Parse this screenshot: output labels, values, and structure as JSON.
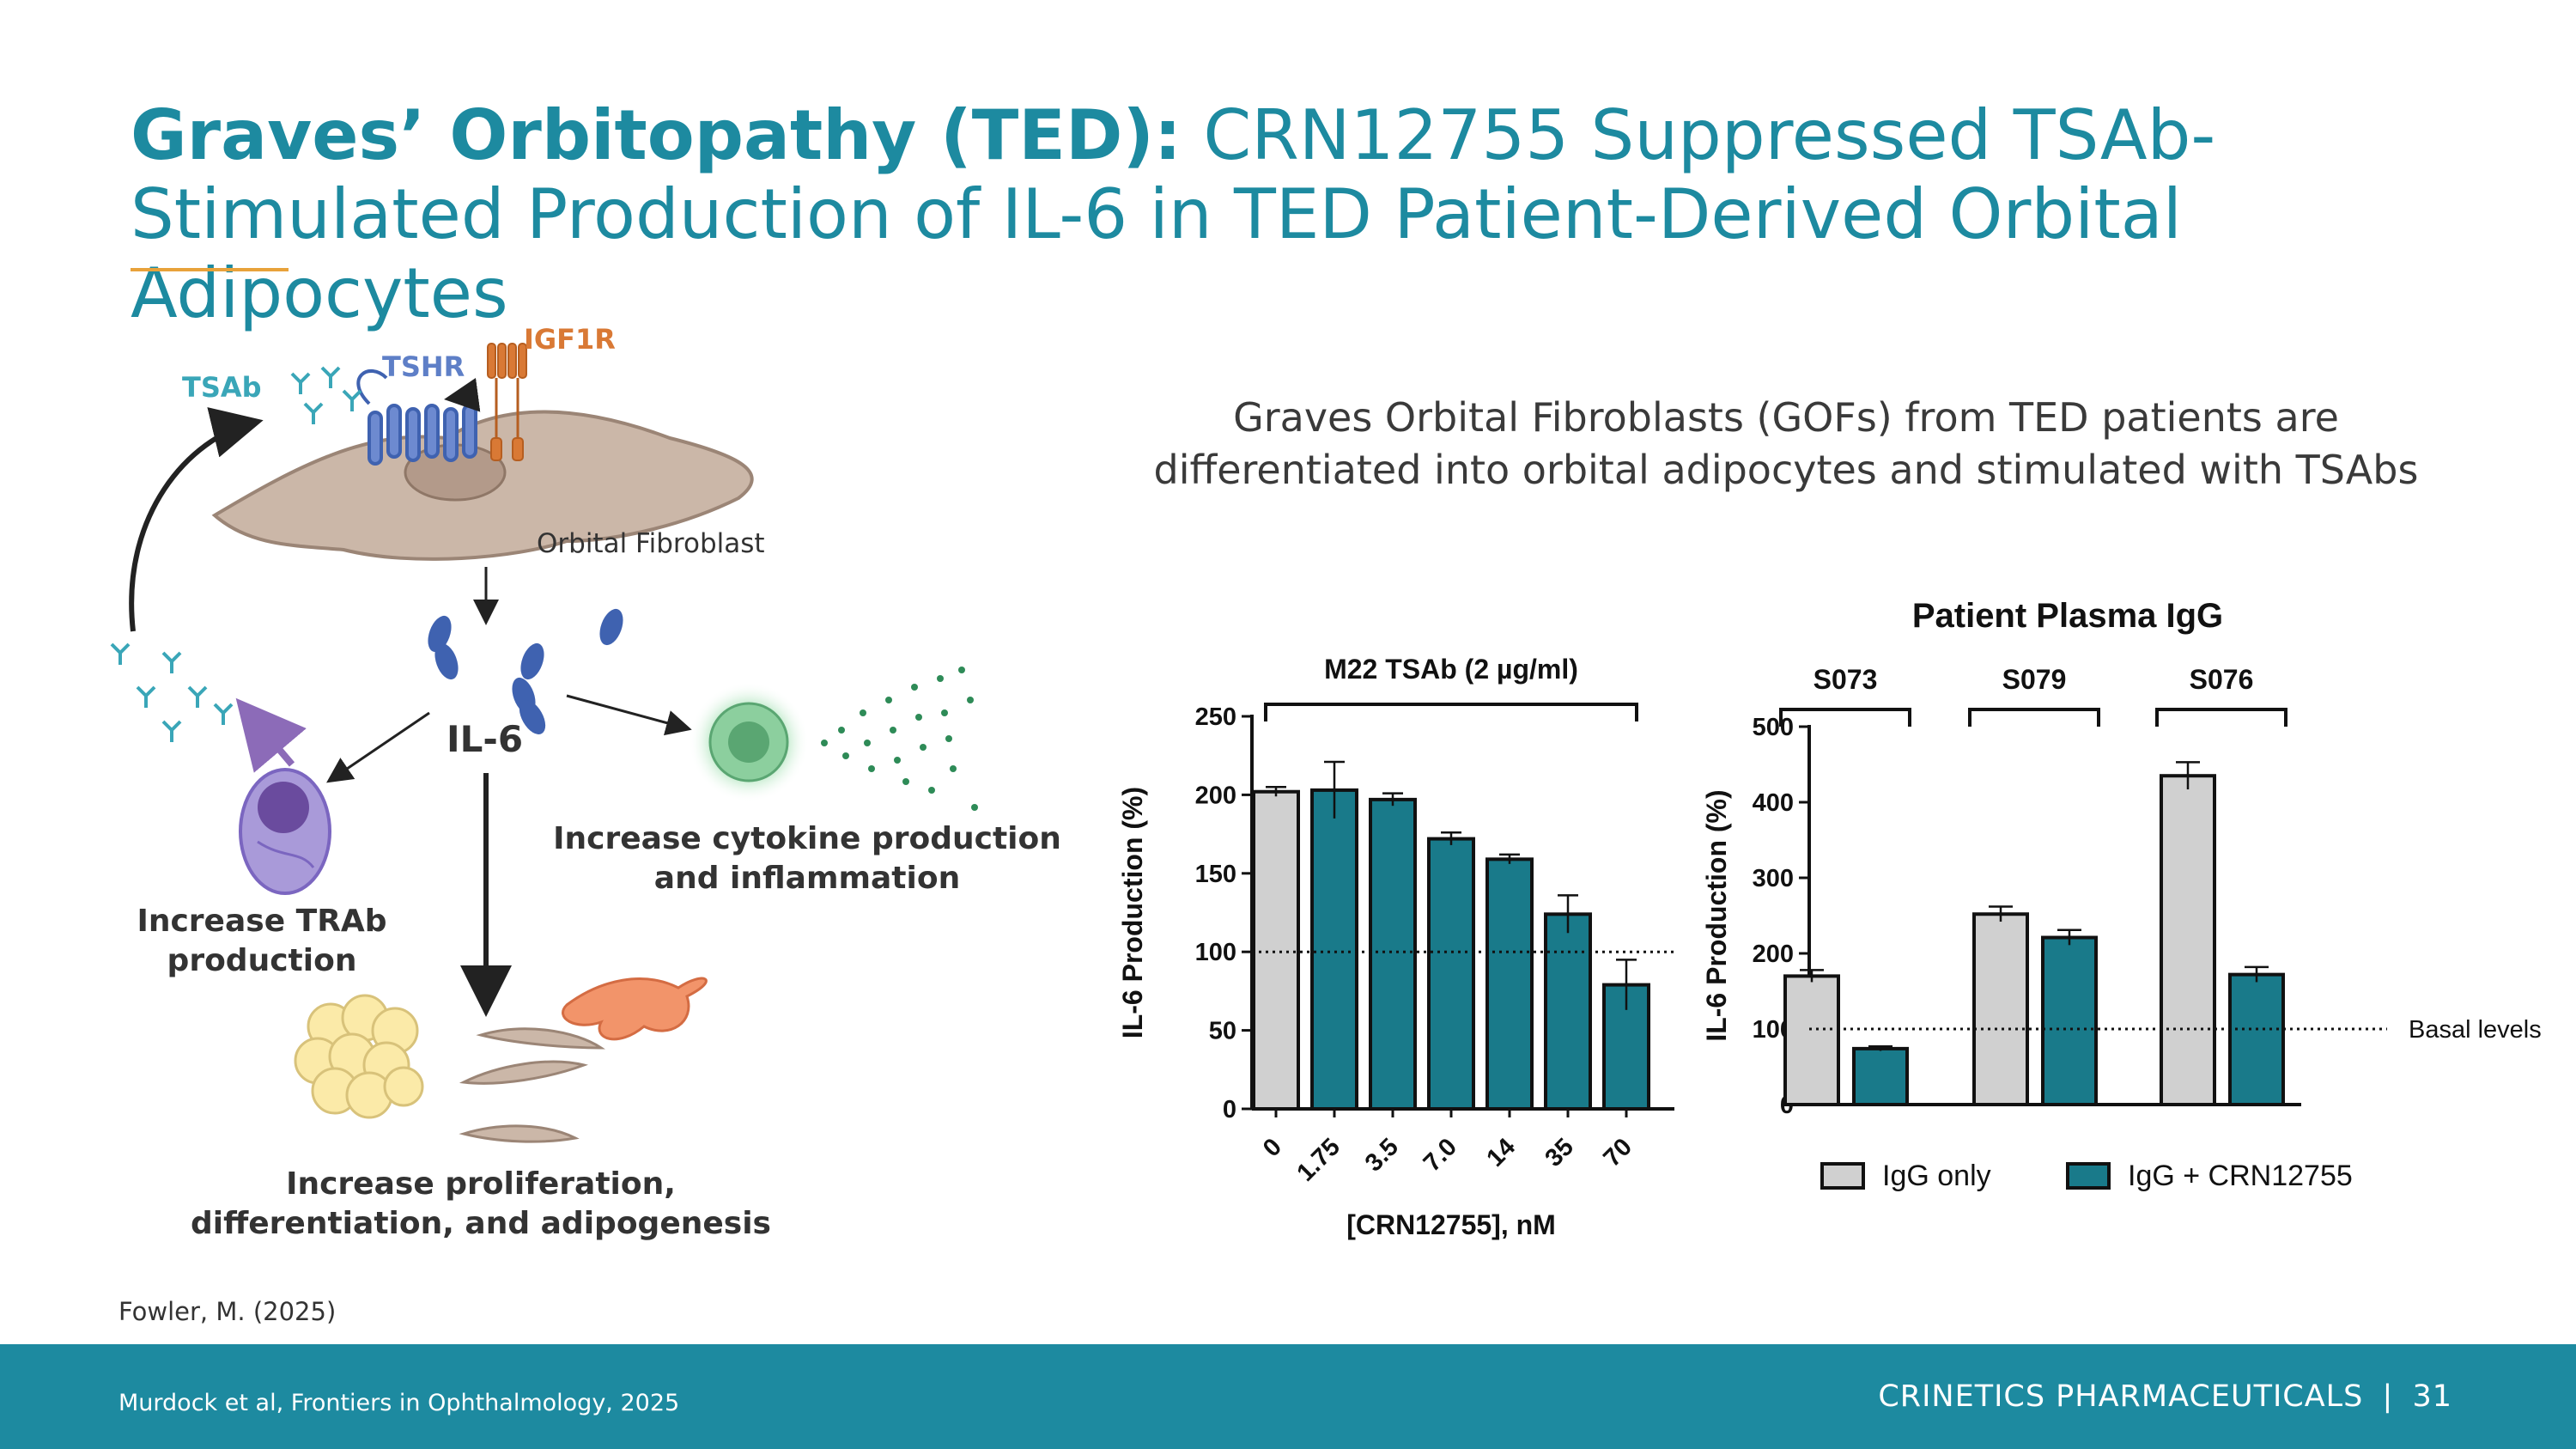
{
  "title": {
    "bold": "Graves’ Orbitopathy (TED):",
    "rest": "CRN12755 Suppressed TSAb-Stimulated Production of IL-6 in TED Patient-Derived Orbital Adipocytes"
  },
  "subtitle": {
    "line1": "Graves Orbital Fibroblasts (GOFs) from TED patients are",
    "line2": "differentiated into orbital adipocytes and stimulated with TSAbs"
  },
  "diagram": {
    "tsab": "TSAb",
    "tshr": "TSHR",
    "igf1r": "IGF1R",
    "cell_label": "Orbital Fibroblast",
    "il6": "IL-6",
    "trab": [
      "Increase TRAb",
      "production"
    ],
    "cytokine": [
      "Increase cytokine production",
      "and inflammation"
    ],
    "proliferation": [
      "Increase proliferation,",
      "differentiation, and adipogenesis"
    ]
  },
  "chart_data": [
    {
      "type": "bar",
      "title": "M22 TSAb (2 µg/ml)",
      "xlabel": "[CRN12755], nM",
      "ylabel": "IL-6 Production (%)",
      "ylim": [
        0,
        250
      ],
      "yticks": [
        0,
        50,
        100,
        150,
        200,
        250
      ],
      "categories": [
        "0",
        "1.75",
        "3.5",
        "7.0",
        "14",
        "35",
        "70"
      ],
      "values": [
        202,
        203,
        197,
        172,
        159,
        124,
        79
      ],
      "errors": [
        3,
        18,
        4,
        4,
        3,
        12,
        16
      ],
      "series_of_bar": [
        "IgG only",
        "IgG + CRN12755",
        "IgG + CRN12755",
        "IgG + CRN12755",
        "IgG + CRN12755",
        "IgG + CRN12755",
        "IgG + CRN12755"
      ],
      "reference_line": 100
    },
    {
      "type": "bar",
      "title": "Patient Plasma IgG",
      "ylabel": "IL-6 Production (%)",
      "ylim": [
        0,
        500
      ],
      "yticks": [
        0,
        100,
        200,
        300,
        400,
        500
      ],
      "categories": [
        "S073",
        "S079",
        "S076"
      ],
      "series": [
        {
          "name": "IgG only",
          "values": [
            170,
            252,
            435
          ],
          "errors": [
            8,
            10,
            18
          ]
        },
        {
          "name": "IgG + CRN12755",
          "values": [
            74,
            221,
            172
          ],
          "errors": [
            3,
            10,
            10
          ]
        }
      ],
      "reference_line": 100,
      "reference_label": "Basal levels",
      "legend": "bottom"
    }
  ],
  "colors": {
    "gray_bar": "#d0d0d0",
    "teal_bar": "#197a8a",
    "brand": "#1d8aa0"
  },
  "citation": "Fowler, M. (2025)",
  "footnote": "Murdock et al, Frontiers in Ophthalmology, 2025",
  "footer": {
    "company": "CRINETICS PHARMACEUTICALS",
    "separator": "|",
    "page": "31"
  }
}
